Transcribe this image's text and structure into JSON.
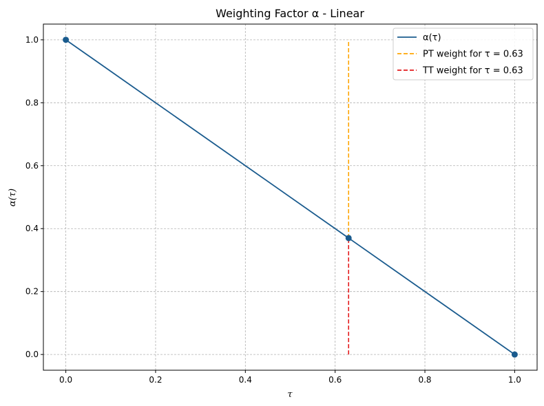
{
  "chart_data": {
    "type": "line",
    "title": "Weighting Factor α - Linear",
    "xlabel": "τ",
    "ylabel": "α(τ)",
    "xlim": [
      -0.05,
      1.05
    ],
    "ylim": [
      -0.05,
      1.05
    ],
    "xticks": [
      0.0,
      0.2,
      0.4,
      0.6,
      0.8,
      1.0
    ],
    "xtick_labels": [
      "0.0",
      "0.2",
      "0.4",
      "0.6",
      "0.8",
      "1.0"
    ],
    "yticks": [
      0.0,
      0.2,
      0.4,
      0.6,
      0.8,
      1.0
    ],
    "ytick_labels": [
      "0.0",
      "0.2",
      "0.4",
      "0.6",
      "0.8",
      "1.0"
    ],
    "grid": true,
    "legend_position": "top-right",
    "series": [
      {
        "name": "α(τ)",
        "kind": "line",
        "color": "#1a5b8e",
        "x": [
          0.0,
          1.0
        ],
        "y": [
          1.0,
          0.0
        ],
        "markers": [
          {
            "x": 0.0,
            "y": 1.0
          },
          {
            "x": 0.63,
            "y": 0.37
          },
          {
            "x": 1.0,
            "y": 0.0
          }
        ]
      },
      {
        "name": "PT weight for τ = 0.63",
        "kind": "vline-dashed",
        "color": "#ffa500",
        "x": 0.63,
        "y_range": [
          0.37,
          1.0
        ]
      },
      {
        "name": "TT weight for τ = 0.63",
        "kind": "vline-dashed",
        "color": "#e31a1c",
        "x": 0.63,
        "y_range": [
          0.0,
          0.37
        ]
      }
    ]
  }
}
